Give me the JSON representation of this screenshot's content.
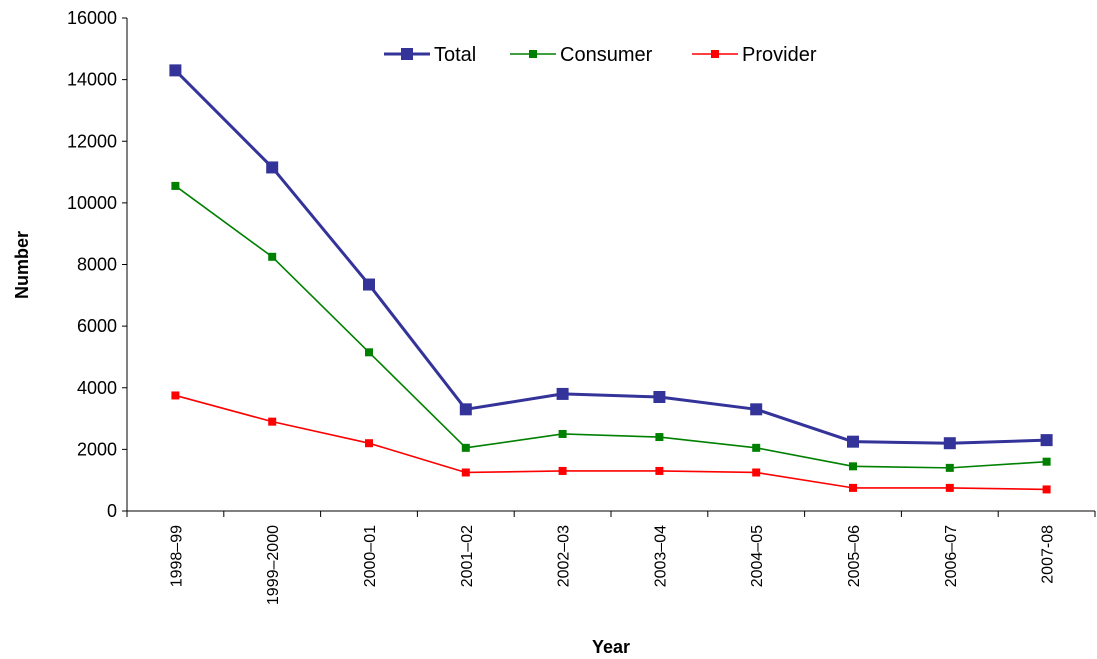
{
  "chart_data": {
    "type": "line",
    "title": "",
    "xlabel": "Year",
    "ylabel": "Number",
    "categories": [
      "1998–99",
      "1999–2000",
      "2000–01",
      "2001–02",
      "2002–03",
      "2003–04",
      "2004–05",
      "2005–06",
      "2006–07",
      "2007-08"
    ],
    "ylim": [
      0,
      16000
    ],
    "yticks": [
      0,
      2000,
      4000,
      6000,
      8000,
      10000,
      12000,
      14000,
      16000
    ],
    "grid": false,
    "legend_position": "top",
    "series": [
      {
        "name": "Total",
        "color": "#333399",
        "values": [
          14300,
          11150,
          7350,
          3300,
          3800,
          3700,
          3300,
          2250,
          2200,
          2300
        ]
      },
      {
        "name": "Consumer",
        "color": "#008000",
        "values": [
          10550,
          8250,
          5150,
          2050,
          2500,
          2400,
          2050,
          1450,
          1400,
          1600
        ]
      },
      {
        "name": "Provider",
        "color": "#ff0000",
        "values": [
          3750,
          2900,
          2200,
          1250,
          1300,
          1300,
          1250,
          750,
          750,
          700
        ]
      }
    ]
  }
}
